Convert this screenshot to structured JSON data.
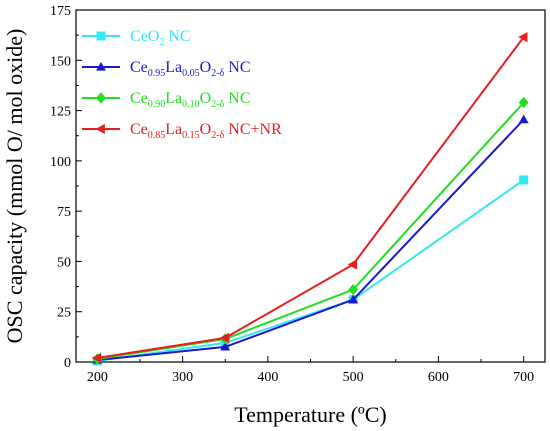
{
  "chart_data": {
    "type": "line",
    "xlabel": "Temperature (ºC)",
    "ylabel": "OSC capacity (mmol O/ mol oxide)",
    "xlim": [
      175,
      725
    ],
    "ylim": [
      0,
      175
    ],
    "xticks": [
      200,
      300,
      400,
      500,
      600,
      700
    ],
    "yticks": [
      0,
      25,
      50,
      75,
      100,
      125,
      150,
      175
    ],
    "grid": false,
    "legend_position": "top-left",
    "series": [
      {
        "name": "CeO2 NC",
        "label_parts": [
          [
            "CeO",
            ""
          ],
          [
            "2",
            "sub"
          ],
          [
            " NC",
            ""
          ]
        ],
        "color": "#33e8f0",
        "marker": "square",
        "x": [
          200,
          350,
          500,
          700
        ],
        "y": [
          0.5,
          9.5,
          31,
          90.5
        ]
      },
      {
        "name": "Ce0.95La0.05O2-δ NC",
        "label_parts": [
          [
            "Ce",
            ""
          ],
          [
            "0.95",
            "sub"
          ],
          [
            "La",
            ""
          ],
          [
            "0.05",
            "sub"
          ],
          [
            "O",
            ""
          ],
          [
            "2-δ",
            "sub"
          ],
          [
            " NC",
            ""
          ]
        ],
        "color": "#1a1acc",
        "marker": "triangle-up",
        "x": [
          200,
          350,
          500,
          700
        ],
        "y": [
          1,
          7.5,
          31,
          120.5
        ]
      },
      {
        "name": "Ce0.90La0.10O2-δ NC",
        "label_parts": [
          [
            "Ce",
            ""
          ],
          [
            "0.90",
            "sub"
          ],
          [
            "La",
            ""
          ],
          [
            "0.10",
            "sub"
          ],
          [
            "O",
            ""
          ],
          [
            "2-δ",
            "sub"
          ],
          [
            " NC",
            ""
          ]
        ],
        "color": "#22dd22",
        "marker": "diamond",
        "x": [
          200,
          350,
          500,
          700
        ],
        "y": [
          1.5,
          11.5,
          36,
          129
        ]
      },
      {
        "name": "Ce0.85La0.15O2-δ NC+NR",
        "label_parts": [
          [
            "Ce",
            ""
          ],
          [
            "0.85",
            "sub"
          ],
          [
            "La",
            ""
          ],
          [
            "0.15",
            "sub"
          ],
          [
            "O",
            ""
          ],
          [
            "2-δ",
            "sub"
          ],
          [
            " NC+NR",
            ""
          ]
        ],
        "color": "#e81e1e",
        "marker": "triangle-left",
        "x": [
          200,
          350,
          500,
          700
        ],
        "y": [
          2,
          12,
          48.5,
          161.5
        ]
      }
    ]
  }
}
